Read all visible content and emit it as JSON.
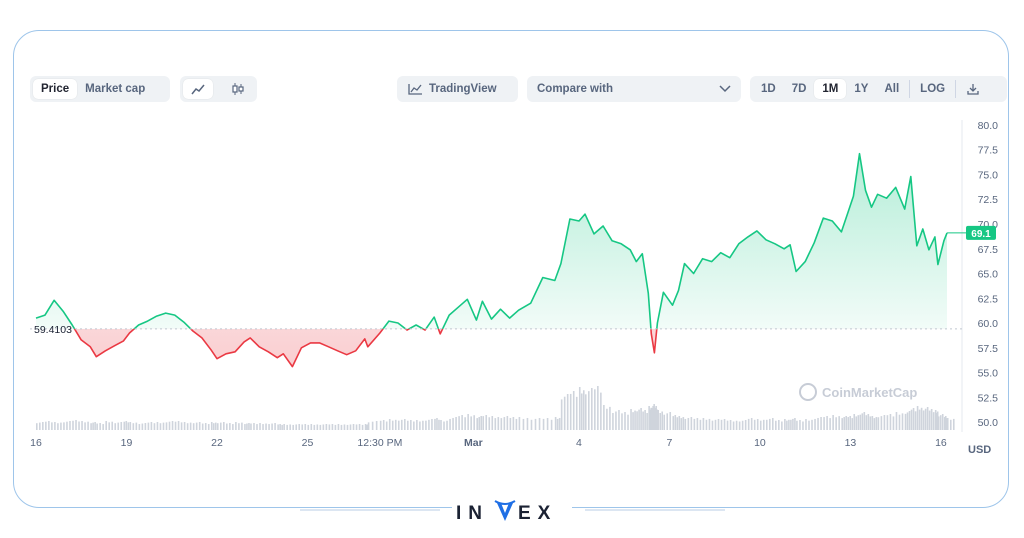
{
  "toolbar": {
    "metric_tabs": [
      "Price",
      "Market cap"
    ],
    "tradingview_label": "TradingView",
    "compare_placeholder": "Compare with",
    "ranges": [
      "1D",
      "7D",
      "1M",
      "1Y",
      "All"
    ],
    "log_label": "LOG",
    "active_metric": "Price",
    "active_range": "1M"
  },
  "brand": {
    "logo_text": "INVEX"
  },
  "chart_data": {
    "type": "line",
    "title": "",
    "xlabel": "",
    "ylabel": "USD",
    "ylim": [
      49,
      80.5
    ],
    "y_ticks": [
      "80.0",
      "77.5",
      "75.0",
      "72.5",
      "70.0",
      "67.5",
      "65.0",
      "62.5",
      "60.0",
      "57.5",
      "55.0",
      "52.5",
      "50.0"
    ],
    "x_range": [
      16,
      46.5
    ],
    "x_ticks": [
      {
        "x": 16,
        "label": "16"
      },
      {
        "x": 19,
        "label": "19"
      },
      {
        "x": 22,
        "label": "22"
      },
      {
        "x": 25,
        "label": "25"
      },
      {
        "x": 27.4,
        "label": "12:30 PM"
      },
      {
        "x": 30.5,
        "label": "Mar"
      },
      {
        "x": 34,
        "label": "4"
      },
      {
        "x": 37,
        "label": "7"
      },
      {
        "x": 40,
        "label": "10"
      },
      {
        "x": 43,
        "label": "13"
      },
      {
        "x": 46,
        "label": "16"
      }
    ],
    "baseline": {
      "value": 59.4103,
      "label": "59.4103"
    },
    "current": {
      "value": 69.1,
      "label": "69.1"
    },
    "up_color": "#16c784",
    "down_color": "#ea3943",
    "watermark": "CoinMarketCap",
    "grid": false,
    "series": [
      {
        "values": [
          [
            16.0,
            60.5
          ],
          [
            16.3,
            60.8
          ],
          [
            16.6,
            62.3
          ],
          [
            16.9,
            61.2
          ],
          [
            17.2,
            59.8
          ],
          [
            17.5,
            58.3
          ],
          [
            17.8,
            57.6
          ],
          [
            18.0,
            56.6
          ],
          [
            18.3,
            57.2
          ],
          [
            18.6,
            57.7
          ],
          [
            18.9,
            58.2
          ],
          [
            19.1,
            59.0
          ],
          [
            19.4,
            59.8
          ],
          [
            19.7,
            60.2
          ],
          [
            20.0,
            60.7
          ],
          [
            20.3,
            61.0
          ],
          [
            20.6,
            60.8
          ],
          [
            20.9,
            60.1
          ],
          [
            21.2,
            59.2
          ],
          [
            21.5,
            58.5
          ],
          [
            21.8,
            57.3
          ],
          [
            22.0,
            56.4
          ],
          [
            22.3,
            56.9
          ],
          [
            22.6,
            57.1
          ],
          [
            22.9,
            58.1
          ],
          [
            23.1,
            58.5
          ],
          [
            23.4,
            57.6
          ],
          [
            23.7,
            57.1
          ],
          [
            24.0,
            56.5
          ],
          [
            24.2,
            56.9
          ],
          [
            24.5,
            55.6
          ],
          [
            24.8,
            57.5
          ],
          [
            25.1,
            58.0
          ],
          [
            25.4,
            58.0
          ],
          [
            25.7,
            57.6
          ],
          [
            26.0,
            57.2
          ],
          [
            26.3,
            56.8
          ],
          [
            26.6,
            57.2
          ],
          [
            26.9,
            58.4
          ],
          [
            27.0,
            57.6
          ],
          [
            27.4,
            59.0
          ],
          [
            27.7,
            60.2
          ],
          [
            28.0,
            60.0
          ],
          [
            28.3,
            59.3
          ],
          [
            28.6,
            59.8
          ],
          [
            28.9,
            59.3
          ],
          [
            29.2,
            60.6
          ],
          [
            29.4,
            58.9
          ],
          [
            29.7,
            60.8
          ],
          [
            30.0,
            61.6
          ],
          [
            30.3,
            62.4
          ],
          [
            30.6,
            60.3
          ],
          [
            30.8,
            62.2
          ],
          [
            31.1,
            60.4
          ],
          [
            31.4,
            61.4
          ],
          [
            31.7,
            60.5
          ],
          [
            32.0,
            61.3
          ],
          [
            32.4,
            62.0
          ],
          [
            32.8,
            64.6
          ],
          [
            33.2,
            64.3
          ],
          [
            33.4,
            66.0
          ],
          [
            33.7,
            70.5
          ],
          [
            34.0,
            70.3
          ],
          [
            34.2,
            71.0
          ],
          [
            34.5,
            69.0
          ],
          [
            34.8,
            69.8
          ],
          [
            35.1,
            68.3
          ],
          [
            35.4,
            68.0
          ],
          [
            35.7,
            67.4
          ],
          [
            35.9,
            66.2
          ],
          [
            36.1,
            67.0
          ],
          [
            36.3,
            63.0
          ],
          [
            36.4,
            58.9
          ],
          [
            36.5,
            57.0
          ],
          [
            36.6,
            60.0
          ],
          [
            36.8,
            63.1
          ],
          [
            37.1,
            61.8
          ],
          [
            37.3,
            63.3
          ],
          [
            37.5,
            66.0
          ],
          [
            37.8,
            65.0
          ],
          [
            38.1,
            66.5
          ],
          [
            38.4,
            66.2
          ],
          [
            38.7,
            67.1
          ],
          [
            39.0,
            66.6
          ],
          [
            39.3,
            68.0
          ],
          [
            39.6,
            68.7
          ],
          [
            39.9,
            69.3
          ],
          [
            40.2,
            68.4
          ],
          [
            40.5,
            68.0
          ],
          [
            40.8,
            67.5
          ],
          [
            41.0,
            67.9
          ],
          [
            41.2,
            65.2
          ],
          [
            41.5,
            66.2
          ],
          [
            41.8,
            68.1
          ],
          [
            42.1,
            70.6
          ],
          [
            42.4,
            70.3
          ],
          [
            42.7,
            69.2
          ],
          [
            42.9,
            71.0
          ],
          [
            43.1,
            72.8
          ],
          [
            43.3,
            77.1
          ],
          [
            43.5,
            73.4
          ],
          [
            43.7,
            71.7
          ],
          [
            43.9,
            73.0
          ],
          [
            44.2,
            72.6
          ],
          [
            44.5,
            73.7
          ],
          [
            44.8,
            71.5
          ],
          [
            45.0,
            74.8
          ],
          [
            45.2,
            67.8
          ],
          [
            45.4,
            69.5
          ],
          [
            45.6,
            67.4
          ],
          [
            45.8,
            68.7
          ],
          [
            45.9,
            65.9
          ],
          [
            46.1,
            68.3
          ],
          [
            46.2,
            69.1
          ]
        ]
      }
    ],
    "volume": [
      [
        16.0,
        0.8
      ],
      [
        16.3,
        0.9
      ],
      [
        16.6,
        0.8
      ],
      [
        16.9,
        0.9
      ],
      [
        17.2,
        1.0
      ],
      [
        17.5,
        0.9
      ],
      [
        17.8,
        0.8
      ],
      [
        18.0,
        0.7
      ],
      [
        18.3,
        0.9
      ],
      [
        18.6,
        0.8
      ],
      [
        18.9,
        0.9
      ],
      [
        19.1,
        0.8
      ],
      [
        19.4,
        0.7
      ],
      [
        19.7,
        0.8
      ],
      [
        20.0,
        0.8
      ],
      [
        20.3,
        0.9
      ],
      [
        20.6,
        0.9
      ],
      [
        20.9,
        0.8
      ],
      [
        21.2,
        0.8
      ],
      [
        21.5,
        0.7
      ],
      [
        21.8,
        0.8
      ],
      [
        22.0,
        0.8
      ],
      [
        22.3,
        0.7
      ],
      [
        22.6,
        0.8
      ],
      [
        22.9,
        0.7
      ],
      [
        23.1,
        0.7
      ],
      [
        23.4,
        0.7
      ],
      [
        23.7,
        0.7
      ],
      [
        24.0,
        0.6
      ],
      [
        24.2,
        0.6
      ],
      [
        24.5,
        0.6
      ],
      [
        24.8,
        0.6
      ],
      [
        25.1,
        0.6
      ],
      [
        25.4,
        0.6
      ],
      [
        25.7,
        0.6
      ],
      [
        26.0,
        0.6
      ],
      [
        26.3,
        0.6
      ],
      [
        26.6,
        0.6
      ],
      [
        26.9,
        0.6
      ],
      [
        27.0,
        0.9
      ],
      [
        27.4,
        1.0
      ],
      [
        27.7,
        1.1
      ],
      [
        28.0,
        1.1
      ],
      [
        28.3,
        1.0
      ],
      [
        28.6,
        1.0
      ],
      [
        28.9,
        1.1
      ],
      [
        29.2,
        1.2
      ],
      [
        29.4,
        1.0
      ],
      [
        29.7,
        1.3
      ],
      [
        30.0,
        1.5
      ],
      [
        30.3,
        1.6
      ],
      [
        30.6,
        1.4
      ],
      [
        30.8,
        1.5
      ],
      [
        31.1,
        1.4
      ],
      [
        31.4,
        1.4
      ],
      [
        31.7,
        1.3
      ],
      [
        32.0,
        1.3
      ],
      [
        32.4,
        1.2
      ],
      [
        32.8,
        1.2
      ],
      [
        33.2,
        1.3
      ],
      [
        33.4,
        3.6
      ],
      [
        33.7,
        3.9
      ],
      [
        34.0,
        4.3
      ],
      [
        34.2,
        4.2
      ],
      [
        34.5,
        4.4
      ],
      [
        34.8,
        2.5
      ],
      [
        35.1,
        2.0
      ],
      [
        35.4,
        1.8
      ],
      [
        35.7,
        2.1
      ],
      [
        35.9,
        2.2
      ],
      [
        36.1,
        2.0
      ],
      [
        36.3,
        2.4
      ],
      [
        36.4,
        2.6
      ],
      [
        36.5,
        2.4
      ],
      [
        36.6,
        2.0
      ],
      [
        36.8,
        1.8
      ],
      [
        37.1,
        1.5
      ],
      [
        37.3,
        1.4
      ],
      [
        37.5,
        1.3
      ],
      [
        37.8,
        1.2
      ],
      [
        38.1,
        1.2
      ],
      [
        38.4,
        1.1
      ],
      [
        38.7,
        1.1
      ],
      [
        39.0,
        1.0
      ],
      [
        39.3,
        1.0
      ],
      [
        39.6,
        1.2
      ],
      [
        39.9,
        1.1
      ],
      [
        40.2,
        1.2
      ],
      [
        40.5,
        1.0
      ],
      [
        40.8,
        1.1
      ],
      [
        41.0,
        1.2
      ],
      [
        41.2,
        1.0
      ],
      [
        41.5,
        1.1
      ],
      [
        41.8,
        1.3
      ],
      [
        42.1,
        1.4
      ],
      [
        42.4,
        1.5
      ],
      [
        42.7,
        1.4
      ],
      [
        42.9,
        1.4
      ],
      [
        43.1,
        1.6
      ],
      [
        43.3,
        1.8
      ],
      [
        43.5,
        1.6
      ],
      [
        43.7,
        1.4
      ],
      [
        43.9,
        1.5
      ],
      [
        44.2,
        1.6
      ],
      [
        44.5,
        1.8
      ],
      [
        44.8,
        1.9
      ],
      [
        45.0,
        2.2
      ],
      [
        45.2,
        2.4
      ],
      [
        45.4,
        2.3
      ],
      [
        45.6,
        2.1
      ],
      [
        45.8,
        2.0
      ],
      [
        45.9,
        1.6
      ],
      [
        46.1,
        1.4
      ],
      [
        46.2,
        1.2
      ]
    ]
  }
}
